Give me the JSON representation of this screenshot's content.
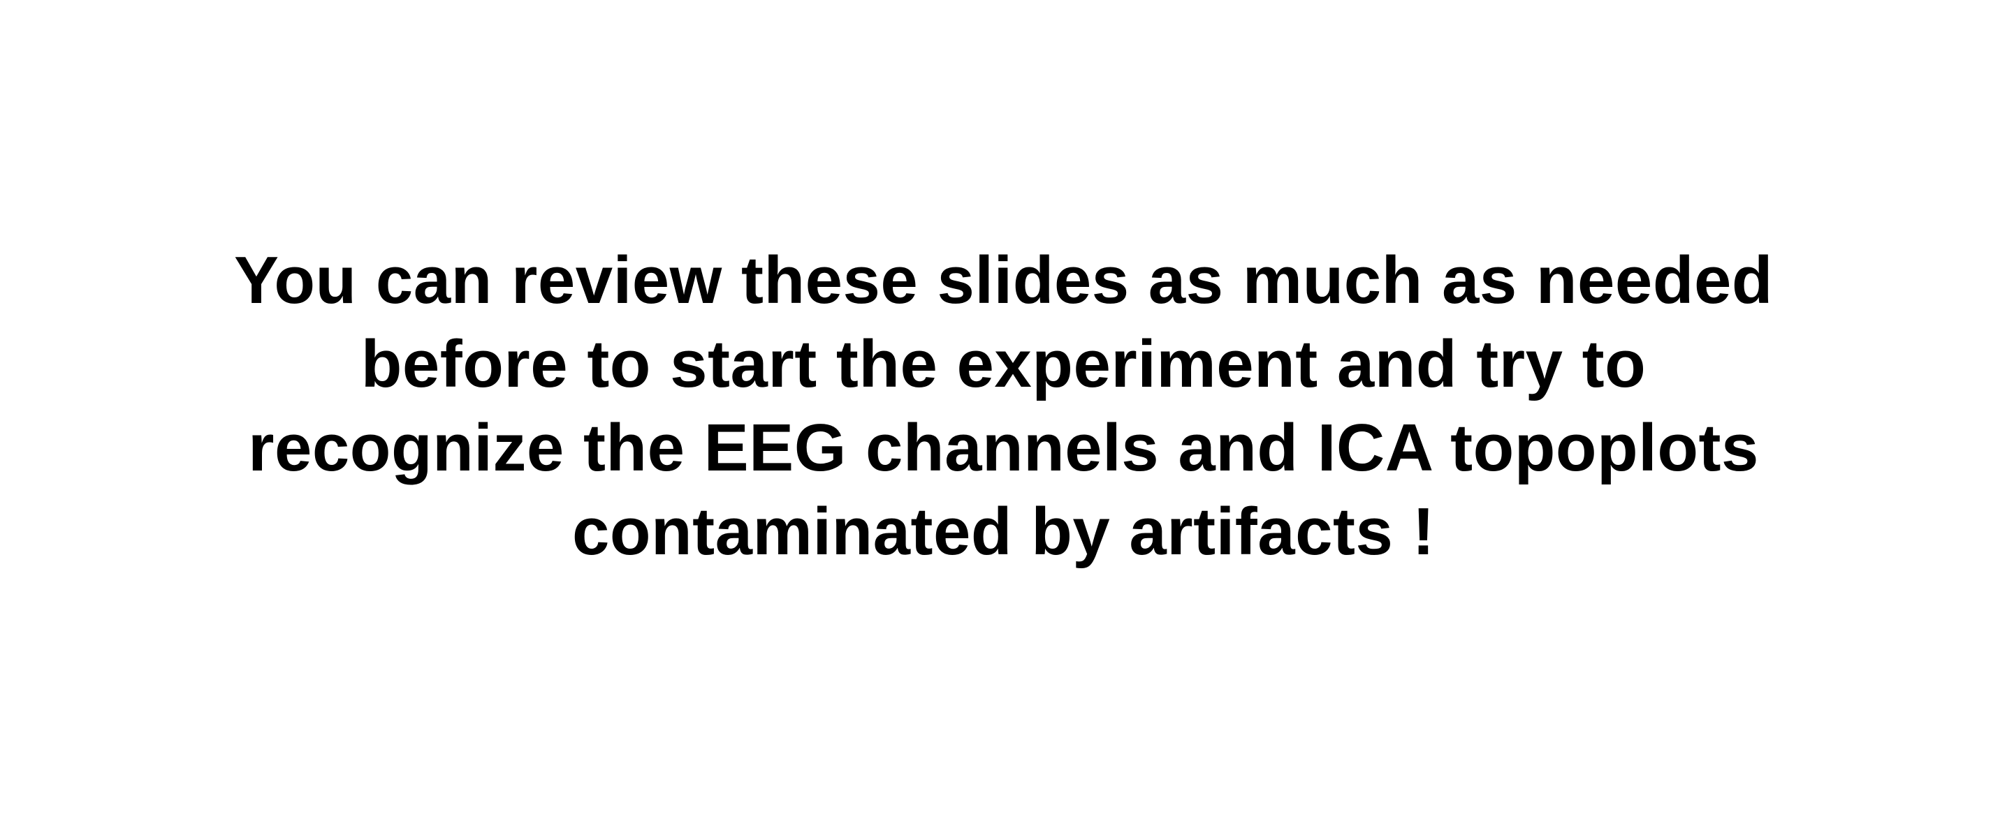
{
  "slide": {
    "background": "#ffffff",
    "text_color": "#000000",
    "message_lines": [
      "You can review these slides as much as needed",
      "before to start the experiment and try to",
      "recognize the EEG channels and ICA topoplots",
      "contaminated by artifacts !"
    ]
  }
}
